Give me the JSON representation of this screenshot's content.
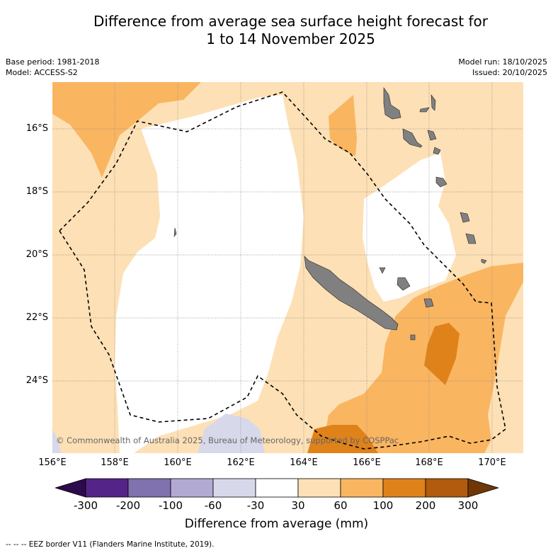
{
  "title": {
    "line1": "Difference from average sea surface height forecast for",
    "line2": "1 to 14 November 2025"
  },
  "meta": {
    "base_period": "Base period: 1981-2018",
    "model": "Model: ACCESS-S2",
    "model_run": "Model run: 18/10/2025",
    "issued": "Issued: 20/10/2025"
  },
  "map": {
    "lat_labels": [
      "16°S",
      "18°S",
      "20°S",
      "22°S",
      "24°S"
    ],
    "lon_labels": [
      "156°E",
      "158°E",
      "160°E",
      "162°E",
      "164°E",
      "166°E",
      "168°E",
      "170°E"
    ],
    "copyright": "© Commonwealth of Australia 2025, Bureau of Meteorology, supported by COSPPac"
  },
  "colorbar": {
    "title": "Difference from average (mm)",
    "tick_labels": [
      "-300",
      "-200",
      "-100",
      "-60",
      "-30",
      "30",
      "60",
      "100",
      "200",
      "300"
    ],
    "colors": {
      "below": "#2d0a4b",
      "c1": "#552488",
      "c2": "#8072ae",
      "c3": "#b2aad3",
      "c4": "#d8d8eb",
      "c5": "#ffffff",
      "c6": "#fde0b5",
      "c7": "#fab560",
      "c8": "#e0821a",
      "c9": "#b25a0d",
      "above": "#6e3705"
    }
  },
  "colors": {
    "land": "#808080",
    "grid": "#888888",
    "eez": "#000000"
  },
  "footnote": "--  --  -- EEZ border V11 (Flanders Marine Institute, 2019)."
}
